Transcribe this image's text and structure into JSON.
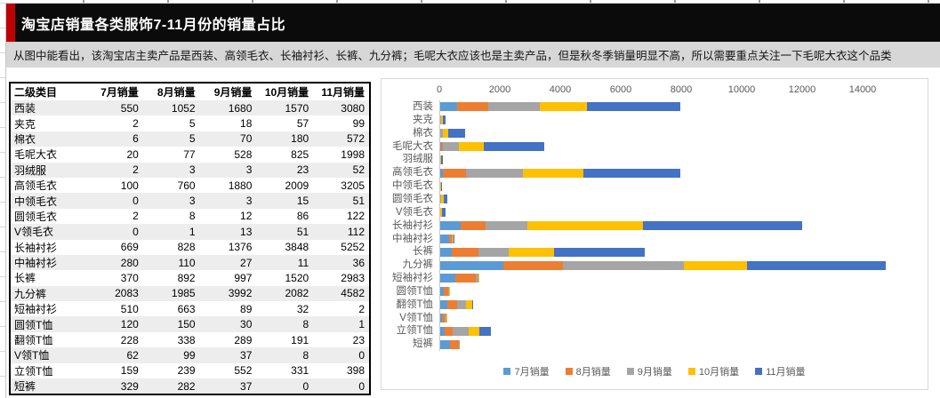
{
  "sheet": {
    "title": "淘宝店销量各类服饰7-11月份的销量占比",
    "note": "从图中能看出，该淘宝店主卖产品是西装、高领毛衣、长袖衬衫、长裤、九分裤；毛呢大衣应该也是主卖产品，但是秋冬季销量明显不高，所以需要重点关注一下毛呢大衣这个品类",
    "accent_color": "#C00000",
    "title_bar_color": "#0B0B0B",
    "note_bar_color": "#D7D7D7"
  },
  "table": {
    "headers": [
      "二级类目",
      "7月销量",
      "8月销量",
      "9月销量",
      "10月销量",
      "11月销量"
    ],
    "rows": [
      [
        "西装",
        550,
        1052,
        1680,
        1570,
        3080
      ],
      [
        "夹克",
        2,
        5,
        18,
        57,
        99
      ],
      [
        "棉衣",
        6,
        5,
        70,
        180,
        572
      ],
      [
        "毛呢大衣",
        20,
        77,
        528,
        825,
        1998
      ],
      [
        "羽绒服",
        2,
        3,
        3,
        23,
        52
      ],
      [
        "高领毛衣",
        100,
        760,
        1880,
        2009,
        3205
      ],
      [
        "中领毛衣",
        0,
        3,
        3,
        15,
        51
      ],
      [
        "圆领毛衣",
        2,
        8,
        12,
        86,
        122
      ],
      [
        "V领毛衣",
        0,
        1,
        13,
        51,
        112
      ],
      [
        "长袖衬衫",
        669,
        828,
        1376,
        3848,
        5252
      ],
      [
        "中袖衬衫",
        280,
        110,
        27,
        11,
        36
      ],
      [
        "长裤",
        370,
        892,
        997,
        1520,
        2983
      ],
      [
        "九分裤",
        2083,
        1985,
        3992,
        2082,
        4582
      ],
      [
        "短袖衬衫",
        510,
        663,
        89,
        32,
        2
      ],
      [
        "圆领T恤",
        120,
        150,
        30,
        8,
        1
      ],
      [
        "翻领T恤",
        228,
        338,
        289,
        191,
        23
      ],
      [
        "V领T恤",
        62,
        99,
        37,
        8,
        0
      ],
      [
        "立领T恤",
        159,
        239,
        552,
        331,
        398
      ],
      [
        "短裤",
        329,
        282,
        37,
        0,
        0
      ]
    ]
  },
  "chart_data": {
    "type": "bar",
    "orientation": "horizontal",
    "stacked": true,
    "title": "",
    "xlabel": "",
    "ylabel": "",
    "grid": false,
    "legend_position": "bottom",
    "x_ticks": [
      0,
      2000,
      4000,
      6000,
      8000,
      10000,
      12000,
      14000
    ],
    "xlim": [
      0,
      16000
    ],
    "categories": [
      "西装",
      "夹克",
      "棉衣",
      "毛呢大衣",
      "羽绒服",
      "高领毛衣",
      "中领毛衣",
      "圆领毛衣",
      "V领毛衣",
      "长袖衬衫",
      "中袖衬衫",
      "长裤",
      "九分裤",
      "短袖衬衫",
      "圆领T恤",
      "翻领T恤",
      "V领T恤",
      "立领T恤",
      "短裤"
    ],
    "series": [
      {
        "name": "7月销量",
        "color": "#5B9BD5",
        "values": [
          550,
          2,
          6,
          20,
          2,
          100,
          0,
          2,
          0,
          669,
          280,
          370,
          2083,
          510,
          120,
          228,
          62,
          159,
          329
        ]
      },
      {
        "name": "8月销量",
        "color": "#ED7D31",
        "values": [
          1052,
          5,
          5,
          77,
          3,
          760,
          3,
          8,
          1,
          828,
          110,
          892,
          1985,
          663,
          150,
          338,
          99,
          239,
          282
        ]
      },
      {
        "name": "9月销量",
        "color": "#A5A5A5",
        "values": [
          1680,
          18,
          70,
          528,
          3,
          1880,
          3,
          12,
          13,
          1376,
          27,
          997,
          3992,
          89,
          30,
          289,
          37,
          552,
          37
        ]
      },
      {
        "name": "10月销量",
        "color": "#FFC000",
        "values": [
          1570,
          57,
          180,
          825,
          23,
          2009,
          15,
          86,
          51,
          3848,
          11,
          1520,
          2082,
          32,
          8,
          191,
          8,
          331,
          0
        ]
      },
      {
        "name": "11月销量",
        "color": "#4472C4",
        "values": [
          3080,
          99,
          572,
          1998,
          52,
          3205,
          51,
          122,
          112,
          5252,
          36,
          2983,
          4582,
          2,
          1,
          23,
          0,
          398,
          0
        ]
      }
    ]
  }
}
